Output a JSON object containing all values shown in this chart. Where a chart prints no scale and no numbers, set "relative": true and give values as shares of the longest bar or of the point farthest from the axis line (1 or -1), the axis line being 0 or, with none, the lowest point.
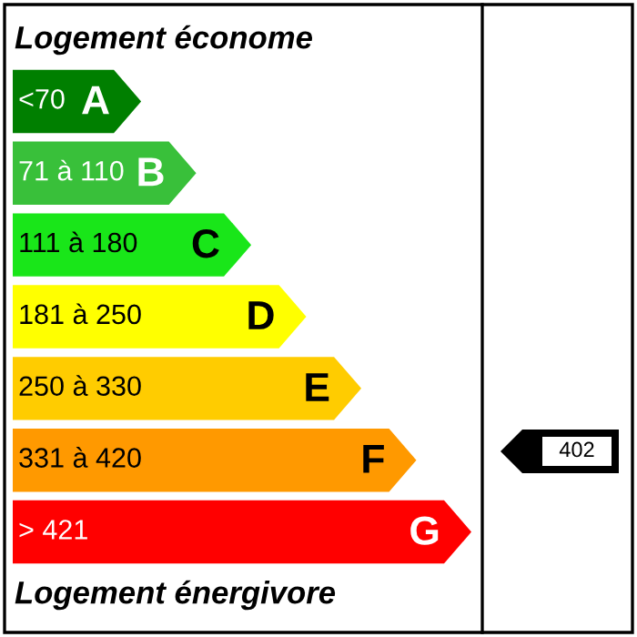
{
  "chart_data": {
    "type": "bar",
    "orientation": "horizontal",
    "relative": true,
    "title": "Logement économe",
    "categories": [
      "<70",
      "71 à 110",
      "111 à 180",
      "181 à 250",
      "250 à 330",
      "331 à 420",
      "> 421"
    ],
    "values": [
      0.28,
      0.4,
      0.52,
      0.64,
      0.76,
      0.88,
      1.0
    ],
    "colors": [
      "#007f00",
      "#39c03a",
      "#19e619",
      "#ffff00",
      "#ffcc00",
      "#ff9900",
      "#ff0000"
    ],
    "annotations": [
      {
        "text": "A",
        "x": 0.28,
        "y": "<70"
      },
      {
        "text": "B",
        "x": 0.4,
        "y": "71 à 110"
      },
      {
        "text": "C",
        "x": 0.52,
        "y": "111 à 180"
      },
      {
        "text": "D",
        "x": 0.64,
        "y": "181 à 250"
      },
      {
        "text": "E",
        "x": 0.76,
        "y": "250 à 330"
      },
      {
        "text": "F",
        "x": 0.88,
        "y": "331 à 420"
      },
      {
        "text": "G",
        "x": 1.0,
        "y": "> 421"
      },
      "402",
      "Logement énergivore"
    ]
  }
}
